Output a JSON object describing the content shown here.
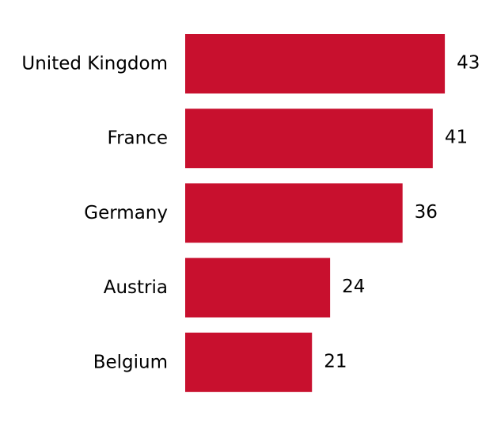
{
  "chart_data": {
    "type": "bar",
    "orientation": "horizontal",
    "categories": [
      "United Kingdom",
      "France",
      "Germany",
      "Austria",
      "Belgium"
    ],
    "values": [
      43,
      41,
      36,
      24,
      21
    ],
    "bar_color": "#c8102e",
    "data_labels": true,
    "grid": false,
    "axes_visible": false
  }
}
